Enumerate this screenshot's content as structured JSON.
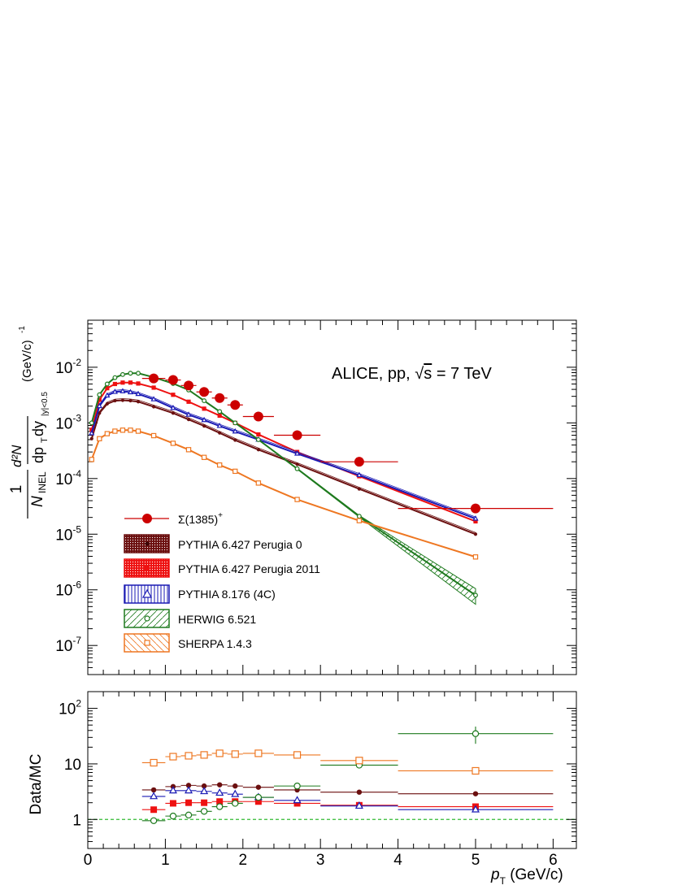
{
  "chart_data": [
    {
      "type": "line",
      "title": "ALICE, pp, √s = 7 TeV",
      "title_parts": {
        "pre": "ALICE, pp, ",
        "sqrt": "√",
        "var": "s",
        "post": " = 7 TeV"
      },
      "ylabel": "(1/N_INEL) d²N/(dp_T dy)_{|y|<0.5} (GeV/c)^-1",
      "ylabel_parts": {
        "one": "1",
        "N": "N",
        "inel": "INEL",
        "d2N": "d²N",
        "dpt": "dp",
        "T": "T",
        "dy": "dy",
        "ycut": "|y|<0.5",
        "unit": "(GeV/c)",
        "exp": "-1"
      },
      "yscale": "log",
      "xlim": [
        0,
        6.3
      ],
      "ylim": [
        3e-08,
        0.07
      ],
      "ytick_labels": [
        {
          "v": 0.01,
          "mant": "10",
          "exp": "-2"
        },
        {
          "v": 0.001,
          "mant": "10",
          "exp": "-3"
        },
        {
          "v": 0.0001,
          "mant": "10",
          "exp": "-4"
        },
        {
          "v": 1e-05,
          "mant": "10",
          "exp": "-5"
        },
        {
          "v": 1e-06,
          "mant": "10",
          "exp": "-6"
        },
        {
          "v": 1e-07,
          "mant": "10",
          "exp": "-7"
        }
      ],
      "legend_position": "bottom-left",
      "data_series": {
        "name": "Σ(1385)⁺",
        "name_parts": {
          "base": "Σ(1385)",
          "sup": "+"
        },
        "color": "#cc0000",
        "x": [
          0.85,
          1.1,
          1.3,
          1.5,
          1.7,
          1.9,
          2.2,
          2.7,
          3.5,
          5.0
        ],
        "xerr": [
          0.15,
          0.1,
          0.1,
          0.1,
          0.1,
          0.1,
          0.2,
          0.3,
          0.5,
          1.0
        ],
        "y": [
          0.0063,
          0.0059,
          0.0047,
          0.0036,
          0.0028,
          0.0021,
          0.0013,
          0.0006,
          0.0002,
          2.9e-05
        ]
      },
      "series": [
        {
          "name": "PYTHIA 6.427 Perugia 0",
          "color": "#6b0f0f",
          "marker": "dot",
          "x": [
            0.05,
            0.15,
            0.25,
            0.35,
            0.45,
            0.55,
            0.65,
            0.85,
            1.1,
            1.3,
            1.5,
            1.7,
            1.9,
            2.2,
            2.7,
            3.5,
            5.0
          ],
          "y": [
            0.00052,
            0.0015,
            0.0022,
            0.0025,
            0.00255,
            0.0025,
            0.0024,
            0.00195,
            0.0015,
            0.00115,
            0.00088,
            0.00066,
            0.00049,
            0.00033,
            0.00018,
            6.5e-05,
            1e-05
          ]
        },
        {
          "name": "PYTHIA 6.427 Perugia 2011",
          "color": "#ee1111",
          "marker": "square",
          "x": [
            0.05,
            0.15,
            0.25,
            0.35,
            0.45,
            0.55,
            0.65,
            0.85,
            1.1,
            1.3,
            1.5,
            1.7,
            1.9,
            2.2,
            2.7,
            3.5,
            5.0
          ],
          "y": [
            0.00075,
            0.0026,
            0.0042,
            0.005,
            0.0053,
            0.0053,
            0.0051,
            0.0043,
            0.0032,
            0.0024,
            0.0018,
            0.00135,
            0.001,
            0.00062,
            0.0003,
            0.00011,
            1.7e-05
          ]
        },
        {
          "name": "PYTHIA 8.176 (4C)",
          "color": "#1a1ab4",
          "marker": "triangle",
          "x": [
            0.05,
            0.15,
            0.25,
            0.35,
            0.45,
            0.55,
            0.65,
            0.85,
            1.1,
            1.3,
            1.5,
            1.7,
            1.9,
            2.2,
            2.7,
            3.5,
            5.0
          ],
          "y": [
            0.00065,
            0.002,
            0.0031,
            0.0036,
            0.0037,
            0.00355,
            0.0033,
            0.00265,
            0.00185,
            0.0014,
            0.00112,
            0.00088,
            0.0007,
            0.0005,
            0.00028,
            0.000115,
            1.9e-05
          ]
        },
        {
          "name": "HERWIG 6.521",
          "color": "#1e7a1e",
          "marker": "circle",
          "x": [
            0.05,
            0.15,
            0.25,
            0.35,
            0.45,
            0.55,
            0.65,
            0.85,
            1.1,
            1.3,
            1.5,
            1.7,
            1.9,
            2.2,
            2.7,
            3.5,
            5.0
          ],
          "y": [
            0.001,
            0.0032,
            0.005,
            0.0065,
            0.0074,
            0.0078,
            0.0078,
            0.0066,
            0.0051,
            0.0039,
            0.0025,
            0.0016,
            0.001,
            0.0005,
            0.00015,
            2.1e-05,
            8e-07
          ],
          "band_low_last": 5.5e-07,
          "band_high_last": 1.05e-06
        },
        {
          "name": "SHERPA 1.4.3",
          "color": "#ee7722",
          "marker": "open-square",
          "x": [
            0.05,
            0.15,
            0.25,
            0.35,
            0.45,
            0.55,
            0.65,
            0.85,
            1.1,
            1.3,
            1.5,
            1.7,
            1.9,
            2.2,
            2.7,
            3.5,
            5.0
          ],
          "y": [
            0.00022,
            0.00052,
            0.00064,
            0.00071,
            0.00074,
            0.00074,
            0.00071,
            0.00059,
            0.00043,
            0.00033,
            0.00024,
            0.000175,
            0.000135,
            8.3e-05,
            4.2e-05,
            1.75e-05,
            3.9e-06
          ]
        }
      ]
    },
    {
      "type": "scatter",
      "ylabel": "Data/MC",
      "xlabel": "p_T (GeV/c)",
      "xlabel_parts": {
        "p": "p",
        "T": "T",
        "unit": " (GeV/c)"
      },
      "yscale": "log",
      "xlim": [
        0,
        6.3
      ],
      "ylim": [
        0.3,
        200
      ],
      "xtick_labels": [
        "0",
        "1",
        "2",
        "3",
        "4",
        "5",
        "6"
      ],
      "ytick_labels": [
        {
          "v": 1,
          "text": "1"
        },
        {
          "v": 10,
          "text": "10"
        },
        {
          "v": 100,
          "mant": "10",
          "exp": "2"
        }
      ],
      "reference_line": 1,
      "bins": {
        "x": [
          0.85,
          1.1,
          1.3,
          1.5,
          1.7,
          1.9,
          2.2,
          2.7,
          3.5,
          5.0
        ],
        "xerr": [
          0.15,
          0.1,
          0.1,
          0.1,
          0.1,
          0.1,
          0.2,
          0.3,
          0.5,
          1.0
        ]
      },
      "series": [
        {
          "name": "PYTHIA 6.427 Perugia 0",
          "color": "#6b0f0f",
          "marker": "dot",
          "y": [
            3.4,
            3.9,
            4.1,
            4.0,
            4.2,
            4.0,
            3.8,
            3.4,
            3.1,
            2.9
          ]
        },
        {
          "name": "PYTHIA 6.427 Perugia 2011",
          "color": "#ee1111",
          "marker": "square",
          "y": [
            1.5,
            1.95,
            2.0,
            2.0,
            2.1,
            2.1,
            2.1,
            1.95,
            1.8,
            1.7
          ]
        },
        {
          "name": "PYTHIA 8.176 (4C)",
          "color": "#1a1ab4",
          "marker": "triangle",
          "y": [
            2.6,
            3.3,
            3.3,
            3.2,
            3.0,
            2.85,
            2.5,
            2.2,
            1.75,
            1.5
          ]
        },
        {
          "name": "HERWIG 6.521",
          "color": "#1e7a1e",
          "marker": "circle",
          "y": [
            0.95,
            1.15,
            1.2,
            1.4,
            1.7,
            1.95,
            2.5,
            4.0,
            9.5,
            35
          ],
          "yerr_last": 12
        },
        {
          "name": "SHERPA 1.4.3",
          "color": "#ee7722",
          "marker": "open-square",
          "y": [
            10.5,
            13.5,
            14.0,
            14.5,
            15.5,
            15.0,
            15.5,
            14.5,
            11.5,
            7.5
          ]
        }
      ]
    }
  ]
}
